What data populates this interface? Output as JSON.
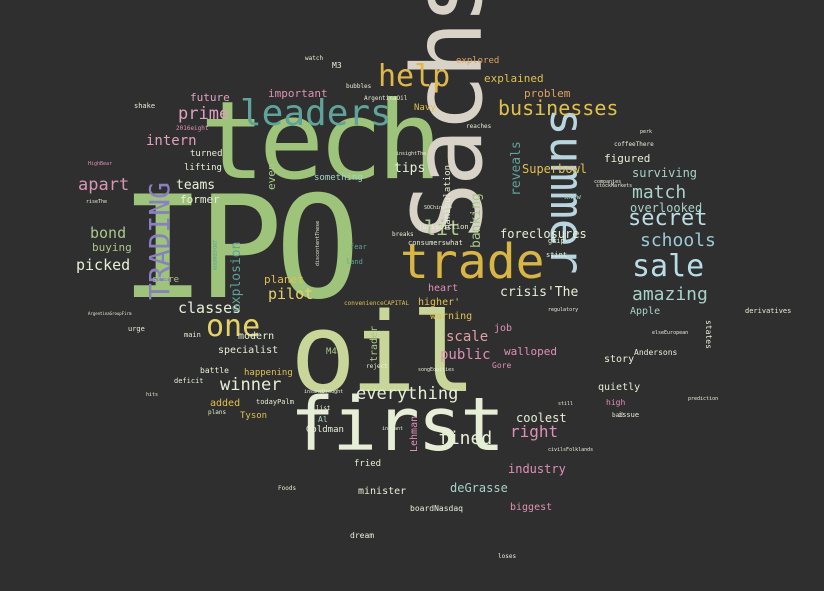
{
  "words": [
    {
      "text": "IPO",
      "color": "#9dc47a"
    },
    {
      "text": "oil",
      "color": "#c9d69a"
    },
    {
      "text": "tech",
      "color": "#9dc47a"
    },
    {
      "text": "Sachs",
      "color": "#d8d3c6"
    },
    {
      "text": "first",
      "color": "#e6efd6"
    },
    {
      "text": "trade",
      "color": "#d8b545"
    },
    {
      "text": "summer",
      "color": "#b9d6e0"
    },
    {
      "text": "leaders",
      "color": "#5fa39a"
    },
    {
      "text": "TRADING",
      "color": "#8a7fc0"
    },
    {
      "text": "help",
      "color": "#e0b84a"
    },
    {
      "text": "sale",
      "color": "#b9dde6"
    },
    {
      "text": "one",
      "color": "#e4d36a"
    },
    {
      "text": "businesses",
      "color": "#e0c050"
    },
    {
      "text": "secret",
      "color": "#b9dde6"
    },
    {
      "text": "schools",
      "color": "#9ccad6"
    },
    {
      "text": "match",
      "color": "#a6d2c8"
    },
    {
      "text": "amazing",
      "color": "#a6d2c8"
    },
    {
      "text": "everything",
      "color": "#e6efd6"
    },
    {
      "text": "apart",
      "color": "#d896b6"
    },
    {
      "text": "prime",
      "color": "#e0a0c0"
    },
    {
      "text": "lit",
      "color": "#a9c88a"
    },
    {
      "text": "winner",
      "color": "#e6efd6"
    },
    {
      "text": "fined",
      "color": "#e6efd6"
    },
    {
      "text": "right",
      "color": "#e090b8"
    },
    {
      "text": "pilot",
      "color": "#e4d36a"
    },
    {
      "text": "bond",
      "color": "#a9c88a"
    },
    {
      "text": "picked",
      "color": "#e6efd6"
    },
    {
      "text": "classes",
      "color": "#e6efd6"
    },
    {
      "text": "scale",
      "color": "#e0a0a0"
    },
    {
      "text": "public",
      "color": "#e090b8"
    },
    {
      "text": "intern",
      "color": "#e0a0c0"
    },
    {
      "text": "teams",
      "color": "#e6efd6"
    },
    {
      "text": "tips",
      "color": "#e6efd6"
    },
    {
      "text": "banking",
      "color": "#a9c88a"
    },
    {
      "text": "reveals",
      "color": "#5fa39a"
    },
    {
      "text": "explosion",
      "color": "#5fa39a"
    },
    {
      "text": "crisis'The",
      "color": "#e6efd6"
    },
    {
      "text": "Superbowl",
      "color": "#e0c050"
    },
    {
      "text": "foreclosures",
      "color": "#e6efd6"
    },
    {
      "text": "surviving",
      "color": "#a6d2c8"
    },
    {
      "text": "overlooked",
      "color": "#a6d2c8"
    },
    {
      "text": "deGrasse",
      "color": "#a6d2c8"
    },
    {
      "text": "industry",
      "color": "#e090b8"
    },
    {
      "text": "coolest",
      "color": "#e6efd6"
    },
    {
      "text": "walloped",
      "color": "#e090b8"
    },
    {
      "text": "explained",
      "color": "#e0c050"
    },
    {
      "text": "problem",
      "color": "#e0a060"
    },
    {
      "text": "figured",
      "color": "#e6efd6"
    },
    {
      "text": "future",
      "color": "#e0a0c0"
    },
    {
      "text": "important",
      "color": "#e090b8"
    },
    {
      "text": "even",
      "color": "#a9c88a"
    },
    {
      "text": "former",
      "color": "#e6efd6"
    },
    {
      "text": "buying",
      "color": "#a9c88a"
    },
    {
      "text": "planet",
      "color": "#e0c050"
    },
    {
      "text": "heart",
      "color": "#e090b8"
    },
    {
      "text": "higher'",
      "color": "#e0c050"
    },
    {
      "text": "warning",
      "color": "#e0c050"
    },
    {
      "text": "job",
      "color": "#e090b8"
    },
    {
      "text": "story",
      "color": "#e6efd6"
    },
    {
      "text": "quietly",
      "color": "#e6efd6"
    },
    {
      "text": "Apple",
      "color": "#a6d2c8"
    },
    {
      "text": "specialist",
      "color": "#e6efd6"
    },
    {
      "text": "modern",
      "color": "#e6efd6"
    },
    {
      "text": "trader",
      "color": "#a9c88a"
    },
    {
      "text": "Lehman",
      "color": "#e090b8"
    },
    {
      "text": "minister",
      "color": "#e6efd6"
    },
    {
      "text": "biggest",
      "color": "#e090b8"
    },
    {
      "text": "added",
      "color": "#e0c050"
    },
    {
      "text": "Tyson",
      "color": "#e0c050"
    },
    {
      "text": "happening",
      "color": "#e0c050"
    },
    {
      "text": "Goldman",
      "color": "#e6efd6"
    },
    {
      "text": "fried",
      "color": "#e6efd6"
    },
    {
      "text": "Navy",
      "color": "#e0c050"
    },
    {
      "text": "manipulation",
      "color": "#e6efd6"
    },
    {
      "text": "explored",
      "color": "#e0a060"
    },
    {
      "text": "lifting",
      "color": "#e6efd6"
    },
    {
      "text": "turned",
      "color": "#e6efd6"
    },
    {
      "text": "scare",
      "color": "#a9c88a"
    },
    {
      "text": "something",
      "color": "#a6d2c8"
    },
    {
      "text": "M3",
      "color": "#e6efd6"
    },
    {
      "text": "M4",
      "color": "#a9c88a"
    },
    {
      "text": "Al",
      "color": "#a6d2c8"
    },
    {
      "text": "dream",
      "color": "#e6efd6"
    },
    {
      "text": "boardNasdaq",
      "color": "#e6efd6"
    },
    {
      "text": "Andersons",
      "color": "#e6efd6"
    },
    {
      "text": "Gore",
      "color": "#e090b8"
    },
    {
      "text": "high",
      "color": "#e090b8"
    },
    {
      "text": "states",
      "color": "#e6efd6"
    },
    {
      "text": "battle",
      "color": "#e6efd6"
    },
    {
      "text": "deficit",
      "color": "#e6efd6"
    },
    {
      "text": "todayPalm",
      "color": "#e6efd6"
    },
    {
      "text": "issue",
      "color": "#e6efd6"
    },
    {
      "text": "shake",
      "color": "#e6efd6"
    },
    {
      "text": "urge",
      "color": "#e6efd6"
    },
    {
      "text": "main",
      "color": "#e6efd6"
    },
    {
      "text": "derivatives",
      "color": "#e6efd6"
    },
    {
      "text": "jurisdiction",
      "color": "#e6efd6"
    },
    {
      "text": "consumerswhat",
      "color": "#e6efd6"
    },
    {
      "text": "stint",
      "color": "#e6efd6"
    },
    {
      "text": "grip",
      "color": "#e6efd6"
    },
    {
      "text": "know",
      "color": "#a6d2c8"
    },
    {
      "text": "fear",
      "color": "#5fa39a"
    },
    {
      "text": "land",
      "color": "#5fa39a"
    },
    {
      "text": "breaks",
      "color": "#e6efd6"
    },
    {
      "text": "convenienceCAPITAL",
      "color": "#e0c050"
    },
    {
      "text": "Foods",
      "color": "#e6efd6"
    },
    {
      "text": "bad",
      "color": "#e6efd6"
    },
    {
      "text": "loses",
      "color": "#e6efd6"
    },
    {
      "text": "plans",
      "color": "#e6efd6"
    },
    {
      "text": "list",
      "color": "#e6efd6"
    },
    {
      "text": "watch",
      "color": "#e6efd6"
    },
    {
      "text": "reject",
      "color": "#e6efd6"
    },
    {
      "text": "SOChina",
      "color": "#e6efd6"
    },
    {
      "text": "ArgentinaOil",
      "color": "#e6efd6"
    },
    {
      "text": "bubbles",
      "color": "#e6efd6"
    },
    {
      "text": "reaches",
      "color": "#e6efd6"
    },
    {
      "text": "insightThe",
      "color": "#e6efd6"
    },
    {
      "text": "coffeeThere",
      "color": "#e6efd6"
    },
    {
      "text": "perk",
      "color": "#e6efd6"
    },
    {
      "text": "hits",
      "color": "#e6efd6"
    },
    {
      "text": "prediction",
      "color": "#e6efd6"
    },
    {
      "text": "still",
      "color": "#e6efd6"
    },
    {
      "text": "instant",
      "color": "#e6efd6"
    },
    {
      "text": "riseThe",
      "color": "#e6efd6"
    },
    {
      "text": "HighBear",
      "color": "#e090b8"
    },
    {
      "text": "companies",
      "color": "#e6efd6"
    },
    {
      "text": "2016eight",
      "color": "#e090b8"
    },
    {
      "text": "regulatory",
      "color": "#e6efd6"
    },
    {
      "text": "elseEuropean",
      "color": "#e6efd6"
    },
    {
      "text": "ROOMREPORT",
      "color": "#5fa39a"
    },
    {
      "text": "discontentThese",
      "color": "#e6efd6"
    },
    {
      "text": "insaneDrought",
      "color": "#e6efd6"
    },
    {
      "text": "songEquities",
      "color": "#e6efd6"
    },
    {
      "text": "stockMarkets",
      "color": "#e6efd6"
    },
    {
      "text": "civilsFolklands",
      "color": "#e6efd6"
    },
    {
      "text": "ArgentinaGroupFirm",
      "color": "#e6efd6"
    }
  ]
}
